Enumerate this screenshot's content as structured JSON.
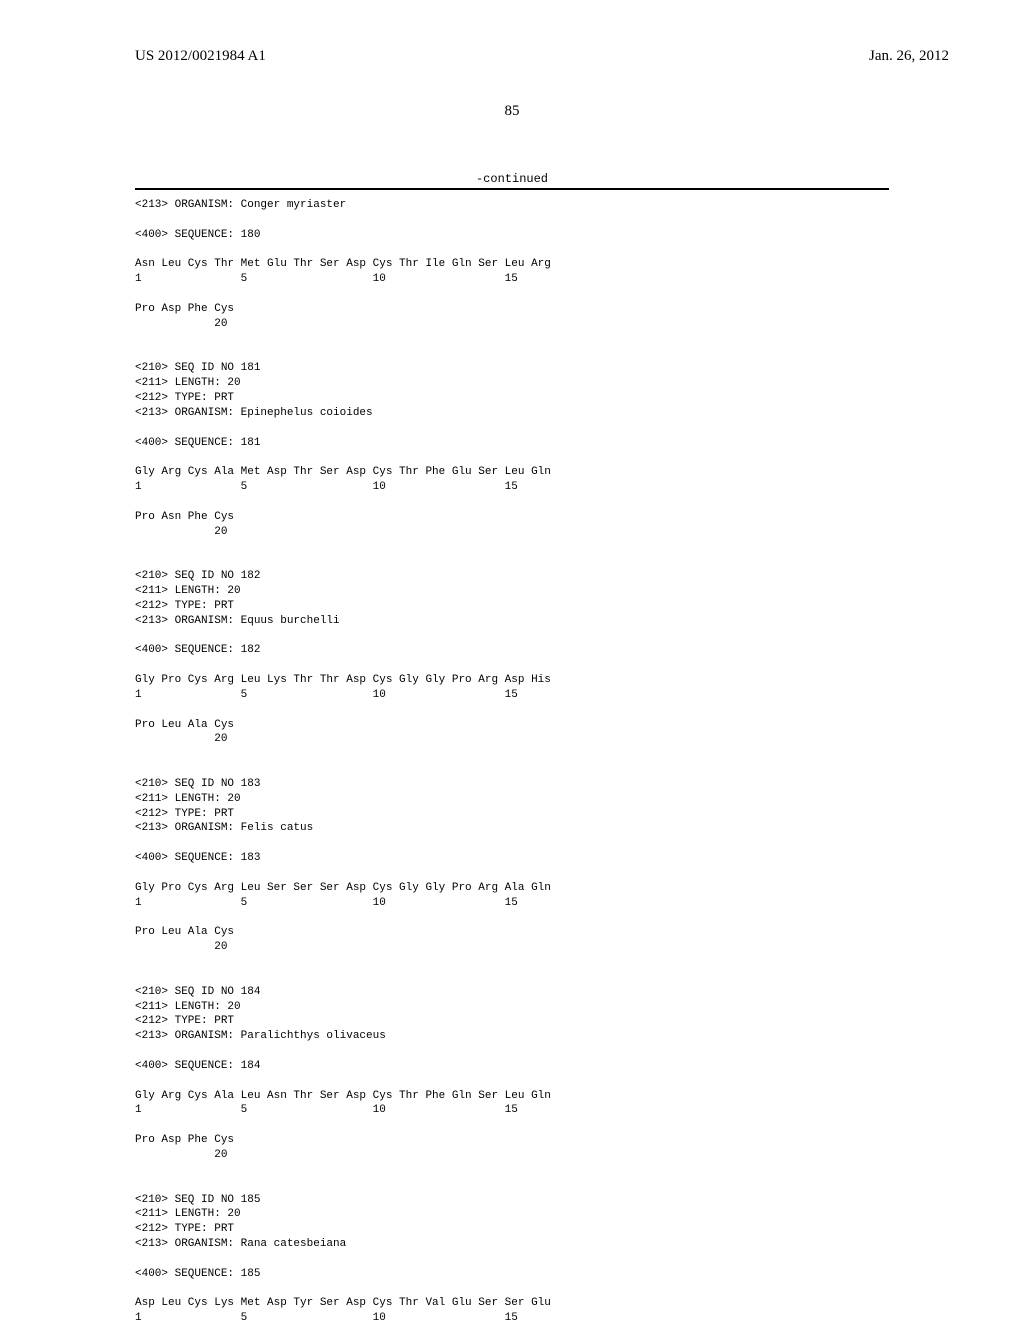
{
  "header": {
    "pub_number": "US 2012/0021984 A1",
    "pub_date": "Jan. 26, 2012"
  },
  "page_number": "85",
  "continued_label": "-continued",
  "fonts": {
    "body_family": "Courier New",
    "header_family": "Times New Roman",
    "seq_fontsize": 11,
    "header_fontsize": 15
  },
  "colors": {
    "background": "#ffffff",
    "text": "#000000",
    "rule": "#000000"
  },
  "sequences": [
    {
      "header_lines": [
        "<213> ORGANISM: Conger myriaster"
      ],
      "seq_label": "<400> SEQUENCE: 180",
      "residue_rows": [
        {
          "aa": "Asn Leu Cys Thr Met Glu Thr Ser Asp Cys Thr Ile Gln Ser Leu Arg",
          "nums": "1               5                   10                  15"
        },
        {
          "aa": "Pro Asp Phe Cys",
          "nums": "            20"
        }
      ]
    },
    {
      "header_lines": [
        "<210> SEQ ID NO 181",
        "<211> LENGTH: 20",
        "<212> TYPE: PRT",
        "<213> ORGANISM: Epinephelus coioides"
      ],
      "seq_label": "<400> SEQUENCE: 181",
      "residue_rows": [
        {
          "aa": "Gly Arg Cys Ala Met Asp Thr Ser Asp Cys Thr Phe Glu Ser Leu Gln",
          "nums": "1               5                   10                  15"
        },
        {
          "aa": "Pro Asn Phe Cys",
          "nums": "            20"
        }
      ]
    },
    {
      "header_lines": [
        "<210> SEQ ID NO 182",
        "<211> LENGTH: 20",
        "<212> TYPE: PRT",
        "<213> ORGANISM: Equus burchelli"
      ],
      "seq_label": "<400> SEQUENCE: 182",
      "residue_rows": [
        {
          "aa": "Gly Pro Cys Arg Leu Lys Thr Thr Asp Cys Gly Gly Pro Arg Asp His",
          "nums": "1               5                   10                  15"
        },
        {
          "aa": "Pro Leu Ala Cys",
          "nums": "            20"
        }
      ]
    },
    {
      "header_lines": [
        "<210> SEQ ID NO 183",
        "<211> LENGTH: 20",
        "<212> TYPE: PRT",
        "<213> ORGANISM: Felis catus"
      ],
      "seq_label": "<400> SEQUENCE: 183",
      "residue_rows": [
        {
          "aa": "Gly Pro Cys Arg Leu Ser Ser Ser Asp Cys Gly Gly Pro Arg Ala Gln",
          "nums": "1               5                   10                  15"
        },
        {
          "aa": "Pro Leu Ala Cys",
          "nums": "            20"
        }
      ]
    },
    {
      "header_lines": [
        "<210> SEQ ID NO 184",
        "<211> LENGTH: 20",
        "<212> TYPE: PRT",
        "<213> ORGANISM: Paralichthys olivaceus"
      ],
      "seq_label": "<400> SEQUENCE: 184",
      "residue_rows": [
        {
          "aa": "Gly Arg Cys Ala Leu Asn Thr Ser Asp Cys Thr Phe Gln Ser Leu Gln",
          "nums": "1               5                   10                  15"
        },
        {
          "aa": "Pro Asp Phe Cys",
          "nums": "            20"
        }
      ]
    },
    {
      "header_lines": [
        "<210> SEQ ID NO 185",
        "<211> LENGTH: 20",
        "<212> TYPE: PRT",
        "<213> ORGANISM: Rana catesbeiana"
      ],
      "seq_label": "<400> SEQUENCE: 185",
      "residue_rows": [
        {
          "aa": "Asp Leu Cys Lys Met Asp Tyr Ser Asp Cys Thr Val Glu Ser Ser Glu",
          "nums": "1               5                   10                  15"
        }
      ]
    }
  ]
}
